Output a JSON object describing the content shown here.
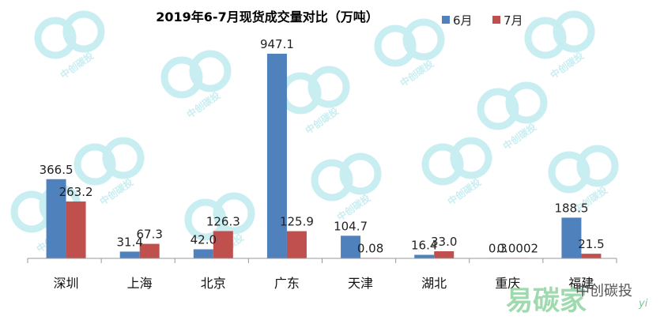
{
  "chart_data": {
    "type": "bar",
    "title": "2019年6-7月现货成交量对比（万吨）",
    "categories": [
      "深圳",
      "上海",
      "北京",
      "广东",
      "天津",
      "湖北",
      "重庆",
      "福建"
    ],
    "series": [
      {
        "name": "6月",
        "color": "#4f81bd",
        "values": [
          366.5,
          31.4,
          42.0,
          947.1,
          104.7,
          16.4,
          0.3,
          188.5
        ],
        "labels": [
          "366.5",
          "31.4",
          "42.0",
          "947.1",
          "104.7",
          "16.4",
          "0.3",
          "188.5"
        ]
      },
      {
        "name": "7月",
        "color": "#c0504d",
        "values": [
          263.2,
          67.3,
          126.3,
          125.9,
          0.08,
          33.0,
          0.0002,
          21.5
        ],
        "labels": [
          "263.2",
          "67.3",
          "126.3",
          "125.9",
          "0.08",
          "33.0",
          "0.0002",
          "21.5"
        ]
      }
    ],
    "ylim": [
      0,
      947.1
    ],
    "grid": false,
    "legend_position": "top-right"
  },
  "watermark": {
    "text": "中创碳投",
    "color": "#c9eef2"
  },
  "logo": {
    "big": "易碳家",
    "small": "中创碳投",
    "url_fragment": "yi"
  }
}
